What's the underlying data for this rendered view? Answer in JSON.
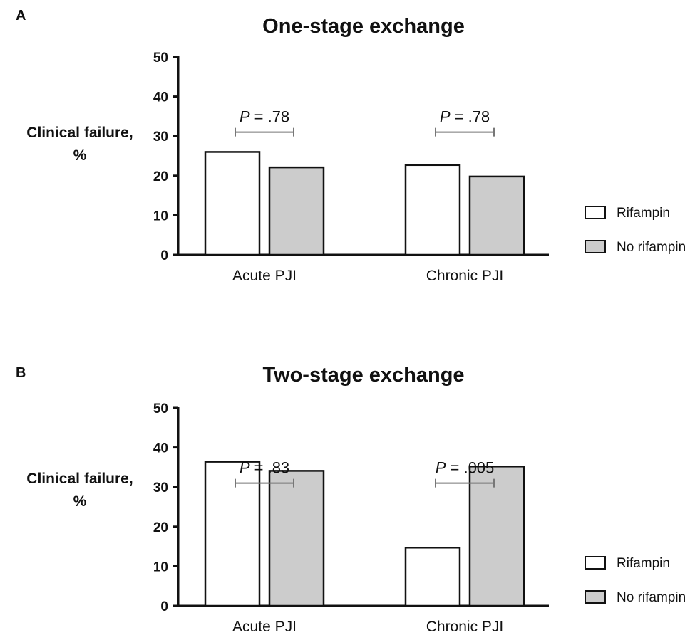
{
  "chart_data": [
    {
      "panel": "A",
      "type": "bar",
      "title": "One-stage exchange",
      "ylabel": "Clinical failure, %",
      "xlabel": "",
      "ylim": [
        0,
        50
      ],
      "yticks": [
        0,
        10,
        20,
        30,
        40,
        50
      ],
      "categories": [
        "Acute PJI",
        "Chronic PJI"
      ],
      "series": [
        {
          "name": "Rifampin",
          "color": "#ffffff",
          "values": [
            26.0,
            22.7
          ]
        },
        {
          "name": "No rifampin",
          "color": "#cccccc",
          "values": [
            22.1,
            19.8
          ]
        }
      ],
      "annotations": [
        {
          "category": "Acute PJI",
          "p_label": "P",
          "p_value": " = .78"
        },
        {
          "category": "Chronic PJI",
          "p_label": "P",
          "p_value": " = .78"
        }
      ],
      "grid": false,
      "legend_position": "right"
    },
    {
      "panel": "B",
      "type": "bar",
      "title": "Two-stage exchange",
      "ylabel": "Clinical failure, %",
      "xlabel": "",
      "ylim": [
        0,
        50
      ],
      "yticks": [
        0,
        10,
        20,
        30,
        40,
        50
      ],
      "categories": [
        "Acute PJI",
        "Chronic PJI"
      ],
      "series": [
        {
          "name": "Rifampin",
          "color": "#ffffff",
          "values": [
            36.4,
            14.7
          ]
        },
        {
          "name": "No rifampin",
          "color": "#cccccc",
          "values": [
            34.1,
            35.2
          ]
        }
      ],
      "annotations": [
        {
          "category": "Acute PJI",
          "p_label": "P",
          "p_value": " = .83"
        },
        {
          "category": "Chronic PJI",
          "p_label": "P",
          "p_value": " = .005"
        }
      ],
      "grid": false,
      "legend_position": "right"
    }
  ]
}
